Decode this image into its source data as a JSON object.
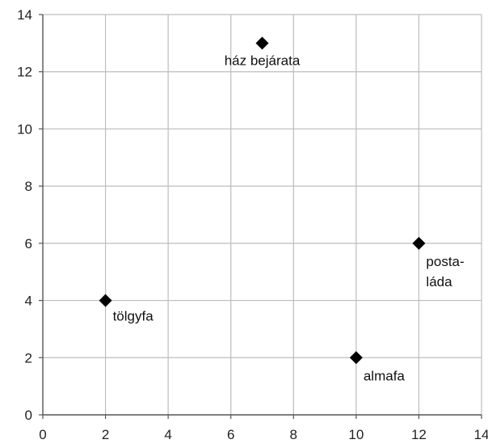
{
  "chart_data": {
    "type": "scatter",
    "title": "",
    "xlabel": "",
    "ylabel": "",
    "xlim": [
      0,
      14
    ],
    "ylim": [
      0,
      14
    ],
    "xticks": [
      0,
      2,
      4,
      6,
      8,
      10,
      12,
      14
    ],
    "yticks": [
      0,
      2,
      4,
      6,
      8,
      10,
      12,
      14
    ],
    "grid": true,
    "marker": "diamond",
    "colors": {
      "marker": "#000000",
      "grid": "#bdbdbd",
      "axis": "#555555"
    },
    "points": [
      {
        "label": "ház bejárata",
        "x": 7,
        "y": 13
      },
      {
        "label": "tölgyfa",
        "x": 2,
        "y": 4
      },
      {
        "label": [
          "posta-",
          "láda"
        ],
        "x": 12,
        "y": 6
      },
      {
        "label": "almafa",
        "x": 10,
        "y": 2
      }
    ]
  }
}
